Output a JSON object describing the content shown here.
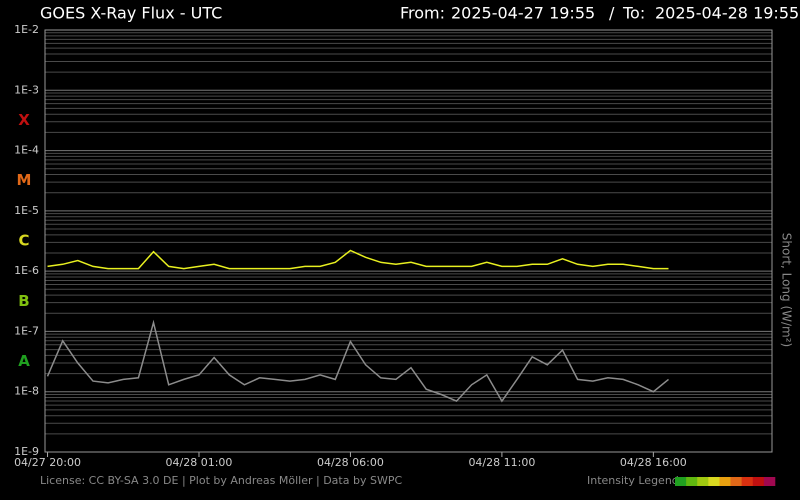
{
  "chart_data": {
    "type": "line",
    "title": "GOES X-Ray Flux - UTC",
    "from_label": "From:",
    "to_label": "To:",
    "y_axis_label": "Short, Long (W/m²)",
    "log_y": true,
    "grid": true,
    "xlim": [
      "2025-04-27 19:55",
      "2025-04-28 19:55"
    ],
    "ylim": [
      1e-09,
      0.01
    ],
    "yticks": [
      {
        "value": 1e-09,
        "label": "1E-9"
      },
      {
        "value": 1e-08,
        "label": "1E-8"
      },
      {
        "value": 1e-07,
        "label": "1E-7"
      },
      {
        "value": 1e-06,
        "label": "1E-6"
      },
      {
        "value": 1e-05,
        "label": "1E-5"
      },
      {
        "value": 0.0001,
        "label": "1E-4"
      },
      {
        "value": 0.001,
        "label": "1E-3"
      },
      {
        "value": 0.01,
        "label": "1E-2"
      }
    ],
    "xticks": [
      {
        "value": "2025-04-27 20:00",
        "label": "04/27 20:00"
      },
      {
        "value": "2025-04-28 01:00",
        "label": "04/28 01:00"
      },
      {
        "value": "2025-04-28 06:00",
        "label": "04/28 06:00"
      },
      {
        "value": "2025-04-28 11:00",
        "label": "04/28 11:00"
      },
      {
        "value": "2025-04-28 16:00",
        "label": "04/28 16:00"
      }
    ],
    "flare_classes": [
      {
        "label": "X",
        "color": "#c01010"
      },
      {
        "label": "M",
        "color": "#e06818"
      },
      {
        "label": "C",
        "color": "#d8d820"
      },
      {
        "label": "B",
        "color": "#80c010"
      },
      {
        "label": "A",
        "color": "#20a020"
      }
    ],
    "x": [
      "2025-04-27 20:00",
      "2025-04-27 20:30",
      "2025-04-27 21:00",
      "2025-04-27 21:30",
      "2025-04-27 22:00",
      "2025-04-27 22:30",
      "2025-04-27 23:00",
      "2025-04-27 23:30",
      "2025-04-28 00:00",
      "2025-04-28 00:30",
      "2025-04-28 01:00",
      "2025-04-28 01:30",
      "2025-04-28 02:00",
      "2025-04-28 02:30",
      "2025-04-28 03:00",
      "2025-04-28 03:30",
      "2025-04-28 04:00",
      "2025-04-28 04:30",
      "2025-04-28 05:00",
      "2025-04-28 05:30",
      "2025-04-28 06:00",
      "2025-04-28 06:30",
      "2025-04-28 07:00",
      "2025-04-28 07:30",
      "2025-04-28 08:00",
      "2025-04-28 08:30",
      "2025-04-28 09:00",
      "2025-04-28 09:30",
      "2025-04-28 10:00",
      "2025-04-28 10:30",
      "2025-04-28 11:00",
      "2025-04-28 11:30",
      "2025-04-28 12:00",
      "2025-04-28 12:30",
      "2025-04-28 13:00",
      "2025-04-28 13:30",
      "2025-04-28 14:00",
      "2025-04-28 14:30",
      "2025-04-28 15:00",
      "2025-04-28 15:30",
      "2025-04-28 16:00",
      "2025-04-28 16:30"
    ],
    "series": [
      {
        "color": "#e8f020",
        "values": [
          1.2e-06,
          1.3e-06,
          1.5e-06,
          1.2e-06,
          1.1e-06,
          1.1e-06,
          1.1e-06,
          2.1e-06,
          1.2e-06,
          1.1e-06,
          1.2e-06,
          1.3e-06,
          1.1e-06,
          1.1e-06,
          1.1e-06,
          1.1e-06,
          1.1e-06,
          1.2e-06,
          1.2e-06,
          1.4e-06,
          2.2e-06,
          1.7e-06,
          1.4e-06,
          1.3e-06,
          1.4e-06,
          1.2e-06,
          1.2e-06,
          1.2e-06,
          1.2e-06,
          1.4e-06,
          1.2e-06,
          1.2e-06,
          1.3e-06,
          1.3e-06,
          1.6e-06,
          1.3e-06,
          1.2e-06,
          1.3e-06,
          1.3e-06,
          1.2e-06,
          1.1e-06,
          1.1e-06
        ]
      },
      {
        "color": "#8c8c8c",
        "values": [
          1.8e-08,
          7e-08,
          3e-08,
          1.5e-08,
          1.4e-08,
          1.6e-08,
          1.7e-08,
          1.4e-07,
          1.3e-08,
          1.6e-08,
          1.9e-08,
          3.7e-08,
          1.9e-08,
          1.3e-08,
          1.7e-08,
          1.6e-08,
          1.5e-08,
          1.6e-08,
          1.9e-08,
          1.6e-08,
          6.8e-08,
          2.8e-08,
          1.7e-08,
          1.6e-08,
          2.5e-08,
          1.1e-08,
          9e-09,
          7e-09,
          1.3e-08,
          1.9e-08,
          7e-09,
          1.6e-08,
          3.8e-08,
          2.8e-08,
          4.9e-08,
          1.6e-08,
          1.5e-08,
          1.7e-08,
          1.6e-08,
          1.3e-08,
          1e-08,
          1.6e-08
        ]
      }
    ],
    "footer": "License: CC BY-SA 3.0 DE | Plot by Andreas Möller | Data by SWPC",
    "legend_title": "Intensity Legend",
    "intensity_colors": [
      "#20a020",
      "#60b810",
      "#a0c810",
      "#d8d820",
      "#e8a010",
      "#e06818",
      "#d83010",
      "#c01010",
      "#a00850"
    ]
  }
}
